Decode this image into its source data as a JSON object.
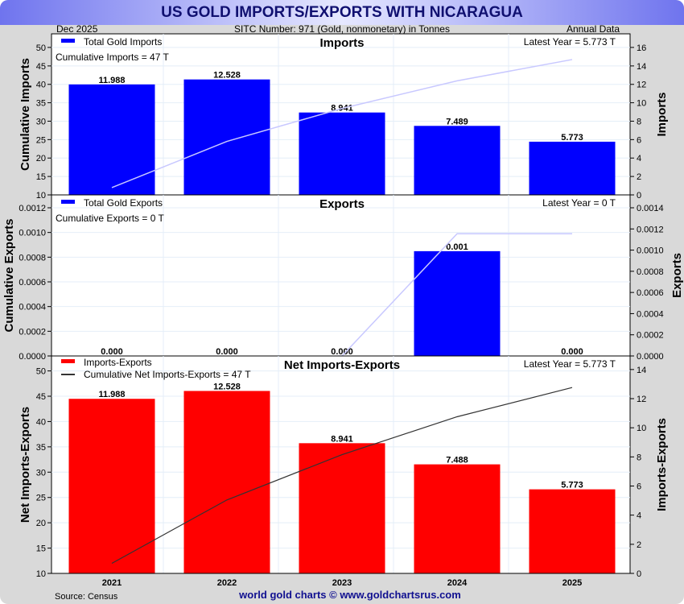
{
  "title": "US GOLD IMPORTS/EXPORTS WITH NICARAGUA",
  "header": {
    "date": "Dec  2025",
    "sitc": "SITC Number: 971 (Gold, nonmonetary) in Tonnes",
    "freq": "Annual Data"
  },
  "footer": {
    "source": "Source: Census",
    "credit": "world gold charts © www.goldchartsrus.com"
  },
  "colors": {
    "bar_blue": "#0000ff",
    "bar_red": "#ff0000",
    "cum_light": "#c8c8ff",
    "cum_dark": "#333333"
  },
  "chart_data": {
    "type": "bar",
    "categories": [
      "2021",
      "2022",
      "2023",
      "2024",
      "2025"
    ],
    "panels": [
      {
        "title": "Imports",
        "legend": "Total Gold Imports",
        "cum_label": "Cumulative Imports = 47 T",
        "latest": "Latest Year = 5.773 T",
        "ylabel_left": "Cumulative Imports",
        "ylabel_right": "Imports",
        "values": [
          11.988,
          12.528,
          8.941,
          7.489,
          5.773
        ],
        "labels": [
          "11.988",
          "12.528",
          "8.941",
          "7.489",
          "5.773"
        ],
        "cumulative": [
          11.988,
          24.516,
          33.457,
          40.946,
          46.719
        ],
        "left_ticks": [
          "10",
          "15",
          "20",
          "25",
          "30",
          "35",
          "40",
          "45",
          "50"
        ],
        "left_range": [
          10,
          53.7
        ],
        "right_ticks": [
          "0",
          "2",
          "4",
          "6",
          "8",
          "10",
          "12",
          "14",
          "16"
        ],
        "right_range": [
          0,
          17.48
        ],
        "color": "#0000ff",
        "cum_color": "#c8c8ff"
      },
      {
        "title": "Exports",
        "legend": "Total Gold Exports",
        "cum_label": "Cumulative Exports = 0 T",
        "latest": "Latest Year = 0 T",
        "ylabel_left": "Cumulative Exports",
        "ylabel_right": "Exports",
        "values": [
          0,
          0,
          0,
          0.00099,
          0
        ],
        "labels": [
          "0.000",
          "0.000",
          "0.000",
          "0.001",
          "0.000"
        ],
        "cumulative": [
          -3e-05,
          -3e-05,
          0,
          0.00099,
          0.00099
        ],
        "left_ticks": [
          "0.0000",
          "0.0002",
          "0.0004",
          "0.0006",
          "0.0008",
          "0.0010",
          "0.0012"
        ],
        "left_range": [
          0,
          0.0012
        ],
        "right_ticks": [
          "0.0000",
          "0.0002",
          "0.0004",
          "0.0006",
          "0.0008",
          "0.0010",
          "0.0012",
          "0.0014"
        ],
        "right_range": [
          0,
          0.0014
        ],
        "color": "#0000ff",
        "cum_color": "#c8c8ff"
      },
      {
        "title": "Net Imports-Exports",
        "legend": "Imports-Exports",
        "legend2": "Cumulative Net Imports-Exports = 47 T",
        "latest": "Latest Year = 5.773 T",
        "ylabel_left": "Net Imports-Exports",
        "ylabel_right": "Imports-Exports",
        "values": [
          11.988,
          12.528,
          8.941,
          7.488,
          5.773
        ],
        "labels": [
          "11.988",
          "12.528",
          "8.941",
          "7.488",
          "5.773"
        ],
        "cumulative": [
          11.988,
          24.516,
          33.457,
          40.945,
          46.718
        ],
        "left_ticks": [
          "10",
          "15",
          "20",
          "25",
          "30",
          "35",
          "40",
          "45",
          "50"
        ],
        "left_range": [
          10,
          52
        ],
        "right_ticks": [
          "0",
          "2",
          "4",
          "6",
          "8",
          "10",
          "12",
          "14"
        ],
        "right_range": [
          0,
          14.6
        ],
        "color": "#ff0000",
        "cum_color": "#333333"
      }
    ]
  }
}
